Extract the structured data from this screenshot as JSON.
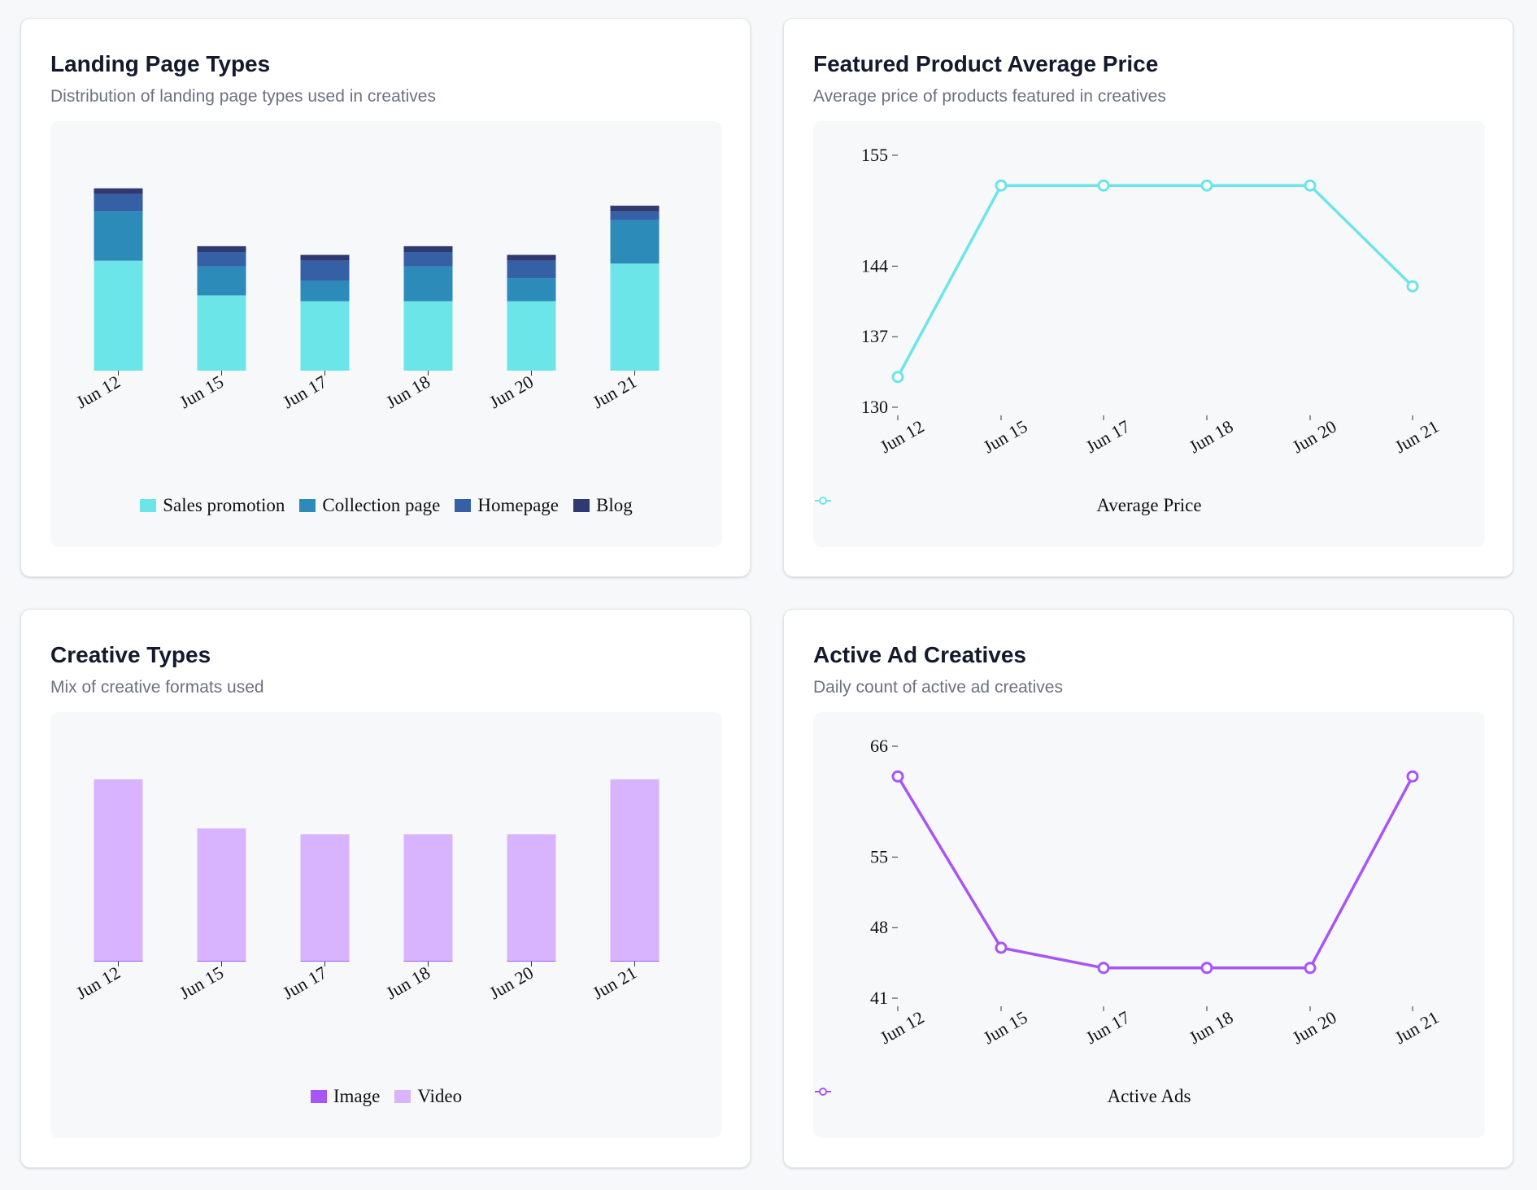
{
  "cards": [
    {
      "title": "Landing Page Types",
      "subtitle": "Distribution of landing page types used in creatives",
      "chart_data": {
        "type": "bar",
        "stacked": true,
        "categories": [
          "Jun 12",
          "Jun 15",
          "Jun 17",
          "Jun 18",
          "Jun 20",
          "Jun 21"
        ],
        "series": [
          {
            "name": "Sales promotion",
            "color": "#6ce5e8",
            "values": [
              38,
              26,
              24,
              24,
              24,
              37
            ]
          },
          {
            "name": "Collection page",
            "color": "#2d8bba",
            "values": [
              17,
              10,
              7,
              12,
              8,
              15
            ]
          },
          {
            "name": "Homepage",
            "color": "#3660a5",
            "values": [
              6,
              5,
              7,
              5,
              6,
              3
            ]
          },
          {
            "name": "Blog",
            "color": "#2f3a70",
            "values": [
              2,
              2,
              2,
              2,
              2,
              2
            ]
          }
        ],
        "ylim": [
          0,
          66
        ],
        "show_y_axis": false,
        "legend": "bottom-center"
      }
    },
    {
      "title": "Featured Product Average Price",
      "subtitle": "Average price of products featured in creatives",
      "chart_data": {
        "type": "line",
        "categories": [
          "Jun 12",
          "Jun 15",
          "Jun 17",
          "Jun 18",
          "Jun 20",
          "Jun 21"
        ],
        "series": [
          {
            "name": "Average Price",
            "color": "#6ce5e8",
            "values": [
              133,
              152,
              152,
              152,
              152,
              142
            ]
          }
        ],
        "yticks": [
          130,
          137,
          144,
          155
        ],
        "ylim": [
          130,
          155
        ],
        "legend": "bottom-center"
      }
    },
    {
      "title": "Creative Types",
      "subtitle": "Mix of creative formats used",
      "chart_data": {
        "type": "bar",
        "stacked": true,
        "categories": [
          "Jun 12",
          "Jun 15",
          "Jun 17",
          "Jun 18",
          "Jun 20",
          "Jun 21"
        ],
        "series": [
          {
            "name": "Image",
            "color": "#a855f7",
            "values": [
              0.3,
              0.3,
              0.3,
              0.3,
              0.3,
              0.3
            ]
          },
          {
            "name": "Video",
            "color": "#d8b4fe",
            "values": [
              62.7,
              45.7,
              43.7,
              43.7,
              43.7,
              62.7
            ]
          }
        ],
        "ylim": [
          0,
          66
        ],
        "show_y_axis": false,
        "legend": "bottom-center"
      }
    },
    {
      "title": "Active Ad Creatives",
      "subtitle": "Daily count of active ad creatives",
      "chart_data": {
        "type": "line",
        "categories": [
          "Jun 12",
          "Jun 15",
          "Jun 17",
          "Jun 18",
          "Jun 20",
          "Jun 21"
        ],
        "series": [
          {
            "name": "Active Ads",
            "color": "#a855f7",
            "values": [
              63,
              46,
              44,
              44,
              44,
              63
            ]
          }
        ],
        "yticks": [
          41,
          48,
          55,
          66
        ],
        "ylim": [
          41,
          66
        ],
        "legend": "bottom-center"
      }
    }
  ]
}
